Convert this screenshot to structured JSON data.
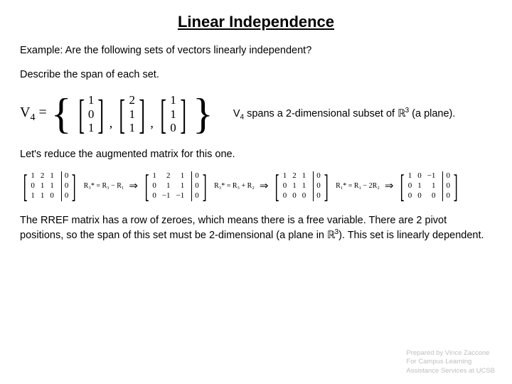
{
  "title": "Linear Independence",
  "example_line": "Example: Are the following sets of vectors linearly independent?",
  "describe_line": "Describe the span of each set.",
  "vset": {
    "name": "V",
    "sub": "4",
    "eq": " = ",
    "vectors": [
      {
        "c": [
          "1",
          "0",
          "1"
        ]
      },
      {
        "c": [
          "2",
          "1",
          "1"
        ]
      },
      {
        "c": [
          "1",
          "1",
          "0"
        ]
      }
    ]
  },
  "span_text_prefix": "V",
  "span_text_sub": "4",
  "span_text_mid": " spans a 2-dimensional subset of ",
  "span_text_r": "ℝ",
  "span_text_exp": "3",
  "span_text_tail": " (a plane).",
  "reduce_line": "Let's reduce the augmented matrix for this one.",
  "mats": {
    "m1": {
      "cols": [
        [
          "1",
          "0",
          "1"
        ],
        [
          "2",
          "1",
          "1"
        ],
        [
          "1",
          "1",
          "0"
        ]
      ],
      "rhs": [
        "0",
        "0",
        "0"
      ]
    },
    "op1_label": "R₃* = R₃ − R₁",
    "m2": {
      "cols": [
        [
          "1",
          "0",
          "0"
        ],
        [
          "2",
          "1",
          "−1"
        ],
        [
          "1",
          "1",
          "−1"
        ]
      ],
      "rhs": [
        "0",
        "0",
        "0"
      ]
    },
    "op2_label": "R₃* = R₃ + R₂",
    "m3": {
      "cols": [
        [
          "1",
          "0",
          "0"
        ],
        [
          "2",
          "1",
          "0"
        ],
        [
          "1",
          "1",
          "0"
        ]
      ],
      "rhs": [
        "0",
        "0",
        "0"
      ]
    },
    "op3_label": "R₁* = R₁ − 2R₂",
    "m4": {
      "cols": [
        [
          "1",
          "0",
          "0"
        ],
        [
          "0",
          "1",
          "0"
        ],
        [
          "−1",
          "1",
          "0"
        ]
      ],
      "rhs": [
        "0",
        "0",
        "0"
      ]
    }
  },
  "conclusion_a": "The RREF matrix has a row of zeroes, which means there is a free variable. There are 2 pivot positions, so the span of this set must be 2-dimensional (a plane in ",
  "conclusion_r": "ℝ",
  "conclusion_exp": "3",
  "conclusion_b": "). This set is linearly dependent.",
  "footer1": "Prepared by Vince Zaccone",
  "footer2": "For Campus Learning",
  "footer3": "Assistance Services at UCSB"
}
